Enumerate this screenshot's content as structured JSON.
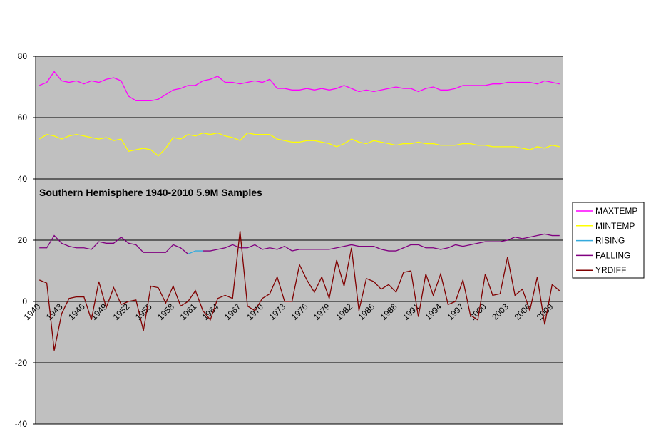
{
  "chart_data": {
    "type": "line",
    "annotation": "Southern Hemisphere 1940-2010 5.9M Samples",
    "categories": [
      "1940",
      null,
      null,
      "1943",
      null,
      null,
      "1946",
      null,
      null,
      "1949",
      null,
      null,
      "1952",
      null,
      null,
      "1955",
      null,
      null,
      "1958",
      null,
      null,
      "1961",
      null,
      null,
      "1964",
      null,
      null,
      "1967",
      null,
      null,
      "1970",
      null,
      null,
      "1973",
      null,
      null,
      "1976",
      null,
      null,
      "1979",
      null,
      null,
      "1982",
      null,
      null,
      "1985",
      null,
      null,
      "1988",
      null,
      null,
      "1991",
      null,
      null,
      "1994",
      null,
      null,
      "1997",
      null,
      null,
      "2000",
      null,
      null,
      "2003",
      null,
      null,
      "2006",
      null,
      null,
      "2009",
      null
    ],
    "series": [
      {
        "name": "MAXTEMP",
        "color": "#ff00ff",
        "values": [
          70.5,
          71.5,
          75,
          72,
          71.5,
          72,
          71,
          72,
          71.5,
          72.5,
          73,
          72,
          67,
          65.5,
          65.5,
          65.5,
          66,
          67.5,
          69,
          69.5,
          70.5,
          70.5,
          72,
          72.5,
          73.5,
          71.5,
          71.5,
          71,
          71.5,
          72,
          71.5,
          72.5,
          69.5,
          69.5,
          69,
          69,
          69.5,
          69,
          69.5,
          69,
          69.5,
          70.5,
          69.5,
          68.5,
          69,
          68.5,
          69,
          69.5,
          70,
          69.5,
          69.5,
          68.5,
          69.5,
          70,
          69,
          69,
          69.5,
          70.5,
          70.5,
          70.5,
          70.5,
          71,
          71,
          71.5,
          71.5,
          71.5,
          71.5,
          71,
          72,
          71.5,
          71
        ]
      },
      {
        "name": "MINTEMP",
        "color": "#ffff00",
        "values": [
          53,
          54.5,
          54,
          53,
          54,
          54.5,
          54,
          53.5,
          53,
          53.5,
          52.5,
          53,
          49,
          49.5,
          50,
          49.5,
          47.5,
          50,
          53.5,
          53,
          54.5,
          54,
          55,
          54.5,
          55,
          54,
          53.5,
          52.5,
          55,
          54.5,
          54.5,
          54.5,
          53,
          52.5,
          52,
          52,
          52.5,
          52.5,
          52,
          51.5,
          50.5,
          51.5,
          53,
          52,
          51.5,
          52.5,
          52,
          51.5,
          51,
          51.5,
          51.5,
          52,
          51.5,
          51.5,
          51,
          51,
          51,
          51.5,
          51.5,
          51,
          51,
          50.5,
          50.5,
          50.5,
          50.5,
          50,
          49.5,
          50.5,
          50,
          51,
          50.5
        ]
      },
      {
        "name": "RISING",
        "color": "#33aadd",
        "values": [
          null,
          null,
          null,
          null,
          null,
          null,
          null,
          null,
          null,
          null,
          null,
          null,
          null,
          null,
          null,
          null,
          null,
          null,
          null,
          null,
          15.5,
          16.5,
          16.5,
          null,
          null,
          null,
          null,
          null,
          null,
          null,
          null,
          null,
          null,
          null,
          null,
          null,
          null,
          null,
          null,
          null,
          null,
          null,
          null,
          null,
          null,
          null,
          null,
          null,
          null,
          null,
          null,
          null,
          null,
          null,
          null,
          null,
          null,
          null,
          null,
          null,
          null,
          null,
          null,
          null,
          null,
          null,
          null,
          null,
          null,
          null,
          null
        ]
      },
      {
        "name": "FALLING",
        "color": "#800080",
        "values": [
          17.5,
          17.5,
          21.5,
          19,
          18,
          17.5,
          17.5,
          17,
          19.5,
          19,
          19,
          21,
          19,
          18.5,
          16,
          16,
          16,
          16,
          18.5,
          17.5,
          15.5,
          null,
          16.5,
          16.5,
          17,
          17.5,
          18.5,
          17.5,
          17.5,
          18.5,
          17,
          17.5,
          17,
          18,
          16.5,
          17,
          17,
          17,
          17,
          17,
          17.5,
          18,
          18.5,
          18,
          18,
          18,
          17,
          16.5,
          16.5,
          17.5,
          18.5,
          18.5,
          17.5,
          17.5,
          17,
          17.5,
          18.5,
          18,
          18.5,
          19,
          19.5,
          19.5,
          19.5,
          20,
          21,
          20.5,
          21,
          21.5,
          22,
          21.5,
          21.5
        ]
      },
      {
        "name": "YRDIFF",
        "color": "#800000",
        "values": [
          7,
          6,
          -16,
          -4,
          1,
          1.5,
          1.5,
          -6,
          6.5,
          -2,
          4.5,
          -1,
          0,
          0.5,
          -9.5,
          5,
          4.5,
          -0.5,
          5,
          -1.5,
          0,
          3.5,
          -3,
          -6,
          1,
          2,
          1,
          23,
          -1.5,
          -3,
          1,
          2.5,
          8,
          0,
          0,
          12,
          7,
          3,
          8,
          1,
          13.5,
          5,
          17.5,
          -3,
          7.5,
          6.5,
          4,
          5.5,
          3,
          9.5,
          10,
          -5,
          9,
          2,
          9,
          -1,
          0,
          7,
          -4.5,
          -6,
          9,
          2,
          2.5,
          14.5,
          2,
          4,
          -3,
          8,
          -7.5,
          5.5,
          3.5
        ]
      }
    ],
    "ylim": [
      -40,
      80
    ],
    "yticks": [
      -40,
      -20,
      0,
      20,
      40,
      60,
      80
    ],
    "grid": true,
    "legend": "right",
    "plot_background": "#c0c0c0"
  }
}
